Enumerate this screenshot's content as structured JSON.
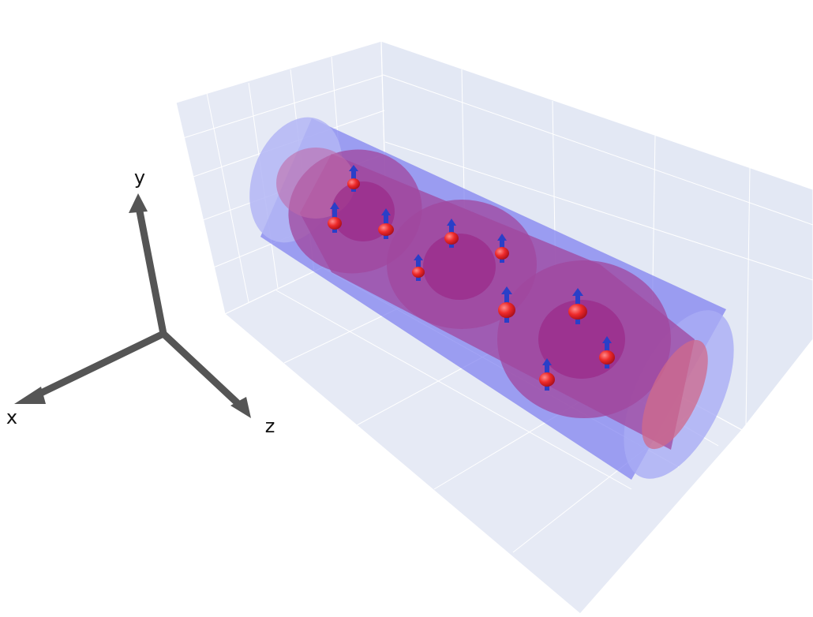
{
  "axis_labels": {
    "x": "x",
    "y": "y",
    "z": "z"
  }
}
